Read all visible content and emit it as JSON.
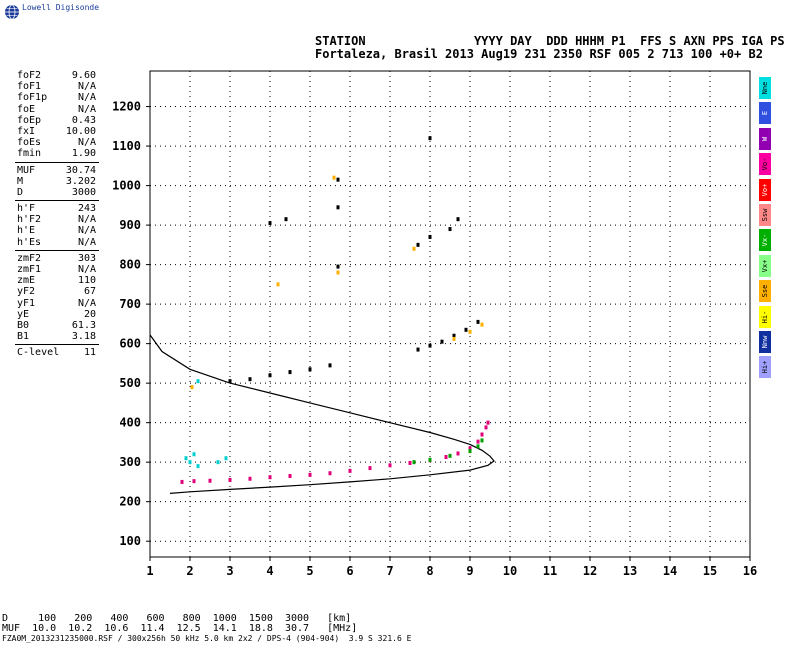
{
  "brand": "Lowell Digisonde",
  "header": {
    "line1": "STATION               YYYY DAY  DDD HHHM P1  FFS S AXN PPS IGA PS",
    "line2": "Fortaleza, Brasil 2013 Aug19 231 2350 RSF 005 2 713 100 +0+ B2"
  },
  "params": [
    [
      [
        "foF2",
        "9.60"
      ],
      [
        "foF1",
        "N/A"
      ],
      [
        "foF1p",
        "N/A"
      ],
      [
        "foE",
        "N/A"
      ],
      [
        "foEp",
        "0.43"
      ],
      [
        "fxI",
        "10.00"
      ],
      [
        "foEs",
        "N/A"
      ],
      [
        "fmin",
        "1.90"
      ]
    ],
    [
      [
        "MUF",
        "30.74"
      ],
      [
        "M",
        "3.202"
      ],
      [
        "D",
        "3000"
      ]
    ],
    [
      [
        "h'F",
        "243"
      ],
      [
        "h'F2",
        "N/A"
      ],
      [
        "h'E",
        "N/A"
      ],
      [
        "h'Es",
        "N/A"
      ]
    ],
    [
      [
        "zmF2",
        "303"
      ],
      [
        "zmF1",
        "N/A"
      ],
      [
        "zmE",
        "110"
      ],
      [
        "yF2",
        "67"
      ],
      [
        "yF1",
        "N/A"
      ],
      [
        "yE",
        "20"
      ],
      [
        "B0",
        "61.3"
      ],
      [
        "B1",
        "3.18"
      ]
    ],
    [
      [
        "C-level",
        "11"
      ]
    ]
  ],
  "legend": [
    {
      "label": "Nne",
      "color": "#00e0e0"
    },
    {
      "label": "E",
      "color": "#3050e0"
    },
    {
      "label": "W",
      "color": "#9000b0"
    },
    {
      "label": "Vo-",
      "color": "#ff00a0"
    },
    {
      "label": "Vo+",
      "color": "#ff0000"
    },
    {
      "label": "Ssw",
      "color": "#ff8888"
    },
    {
      "label": "Vx-",
      "color": "#00b000"
    },
    {
      "label": "Vx+",
      "color": "#88ff88"
    },
    {
      "label": "Sse",
      "color": "#ffb000"
    },
    {
      "label": "Hi-",
      "color": "#ffff00"
    },
    {
      "label": "Nnw",
      "color": "#1030a0"
    },
    {
      "label": "Hi+",
      "color": "#a0a0ff"
    }
  ],
  "footer": {
    "line1": "D     100   200   400   600   800  1000  1500  3000   [km]",
    "line2": "MUF  10.0  10.2  10.6  11.4  12.5  14.1  18.8  30.7   [MHz]",
    "line3": "FZA0M_2013231235000.RSF / 300x256h 50 kHz 5.0 km 2x2 / DPS-4 (904-904)  3.9 S 321.6 E"
  },
  "chart_data": {
    "type": "scatter",
    "xlim": [
      1,
      16
    ],
    "ylim": [
      60,
      1290
    ],
    "x_ticks": [
      1,
      2,
      3,
      4,
      5,
      6,
      7,
      8,
      9,
      10,
      11,
      12,
      13,
      14,
      15,
      16
    ],
    "y_ticks": [
      100,
      200,
      300,
      400,
      500,
      600,
      700,
      800,
      900,
      1000,
      1100,
      1200
    ],
    "grid": true,
    "series": [
      {
        "name": "O-trace",
        "color": "#e0007a",
        "points": [
          [
            1.8,
            250
          ],
          [
            2.1,
            252
          ],
          [
            2.5,
            253
          ],
          [
            3.0,
            255
          ],
          [
            3.5,
            258
          ],
          [
            4.0,
            262
          ],
          [
            4.5,
            265
          ],
          [
            5.0,
            268
          ],
          [
            5.5,
            272
          ],
          [
            6.0,
            278
          ],
          [
            6.5,
            285
          ],
          [
            7.0,
            292
          ],
          [
            7.5,
            298
          ],
          [
            8.0,
            305
          ],
          [
            8.4,
            313
          ],
          [
            8.7,
            322
          ],
          [
            9.0,
            335
          ],
          [
            9.2,
            352
          ],
          [
            9.3,
            370
          ],
          [
            9.4,
            388
          ],
          [
            9.45,
            400
          ]
        ]
      },
      {
        "name": "X-trace",
        "color": "#00a000",
        "points": [
          [
            7.6,
            300
          ],
          [
            8.0,
            306
          ],
          [
            8.5,
            316
          ],
          [
            9.0,
            328
          ],
          [
            9.2,
            340
          ],
          [
            9.3,
            355
          ]
        ]
      },
      {
        "name": "Multi-hop",
        "color": "#000000",
        "points": [
          [
            3.0,
            505
          ],
          [
            3.5,
            510
          ],
          [
            4.0,
            520
          ],
          [
            4.5,
            528
          ],
          [
            5.0,
            535
          ],
          [
            5.5,
            545
          ],
          [
            7.7,
            585
          ],
          [
            8.0,
            595
          ],
          [
            8.3,
            605
          ],
          [
            8.6,
            620
          ],
          [
            8.9,
            635
          ],
          [
            9.2,
            655
          ],
          [
            4.0,
            905
          ],
          [
            4.4,
            915
          ],
          [
            5.7,
            1015
          ],
          [
            5.7,
            945
          ],
          [
            5.7,
            795
          ],
          [
            7.7,
            850
          ],
          [
            8.0,
            870
          ],
          [
            8.5,
            890
          ],
          [
            8.7,
            915
          ],
          [
            8.0,
            1120
          ]
        ]
      },
      {
        "name": "Sse-echoes",
        "color": "#ffb000",
        "points": [
          [
            2.05,
            490
          ],
          [
            4.2,
            750
          ],
          [
            5.7,
            780
          ],
          [
            7.6,
            840
          ],
          [
            8.6,
            612
          ],
          [
            9.0,
            630
          ],
          [
            9.3,
            648
          ],
          [
            5.6,
            1020
          ]
        ]
      },
      {
        "name": "Nne-echoes",
        "color": "#00d0d0",
        "points": [
          [
            1.9,
            310
          ],
          [
            2.0,
            300
          ],
          [
            2.1,
            320
          ],
          [
            2.2,
            290
          ],
          [
            2.7,
            300
          ],
          [
            2.9,
            310
          ],
          [
            2.2,
            505
          ]
        ]
      }
    ],
    "profile": {
      "name": "Electron density profile",
      "color": "#000000",
      "points": [
        [
          1.0,
          622
        ],
        [
          1.3,
          580
        ],
        [
          2.0,
          535
        ],
        [
          3.0,
          500
        ],
        [
          4.0,
          475
        ],
        [
          5.0,
          450
        ],
        [
          6.0,
          425
        ],
        [
          7.0,
          400
        ],
        [
          8.0,
          375
        ],
        [
          8.6,
          358
        ],
        [
          9.0,
          345
        ],
        [
          9.3,
          330
        ],
        [
          9.5,
          315
        ],
        [
          9.6,
          303
        ],
        [
          9.45,
          292
        ],
        [
          9.0,
          280
        ],
        [
          8.0,
          268
        ],
        [
          7.0,
          258
        ],
        [
          6.0,
          250
        ],
        [
          5.0,
          243
        ],
        [
          4.0,
          237
        ],
        [
          3.0,
          231
        ],
        [
          2.0,
          225
        ],
        [
          1.5,
          221
        ]
      ]
    }
  }
}
